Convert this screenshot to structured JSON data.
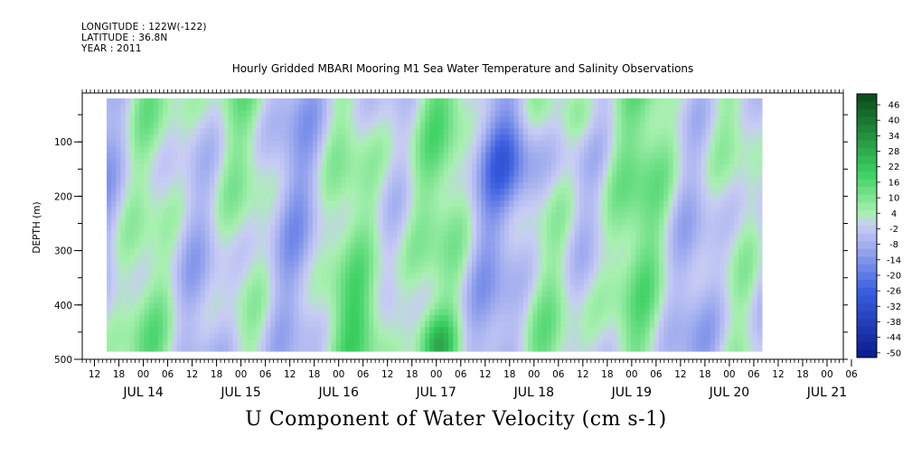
{
  "header": {
    "longitude": "LONGITUDE : 122W(-122)",
    "latitude": "LATITUDE : 36.8N",
    "year": "YEAR : 2011"
  },
  "chart_data": {
    "type": "heatmap",
    "title": "Hourly Gridded MBARI Mooring M1 Sea Water Temperature and Salinity Observations",
    "xlabel": "U Component of Water Velocity (cm s-1)",
    "ylabel": "DEPTH (m)",
    "x_hour_ticks": [
      "12",
      "18",
      "00",
      "06",
      "12",
      "18",
      "00",
      "06",
      "12",
      "18",
      "00",
      "06",
      "12",
      "18",
      "00",
      "06",
      "12",
      "18",
      "00",
      "06",
      "12",
      "18",
      "00",
      "06",
      "12",
      "18",
      "00",
      "06",
      "12",
      "18",
      "00",
      "06"
    ],
    "x_day_labels": [
      "JUL 14",
      "JUL 15",
      "JUL 16",
      "JUL 17",
      "JUL 18",
      "JUL 19",
      "JUL 20",
      "JUL 21"
    ],
    "xlim_hours_from_jul14_00": [
      -15,
      172
    ],
    "data_extent_hours_from_jul14_00": [
      -9,
      152
    ],
    "y_ticks": [
      100,
      200,
      300,
      400,
      500
    ],
    "ylim": [
      500,
      10
    ],
    "data_depth_range": [
      20,
      485
    ],
    "colorbar": {
      "levels": [
        "46",
        "40",
        "34",
        "28",
        "22",
        "16",
        "10",
        "4",
        "-2",
        "-8",
        "-14",
        "-20",
        "-26",
        "-32",
        "-38",
        "-44",
        "-50"
      ],
      "range": [
        -50,
        50
      ],
      "colors": {
        "negative_strong": "#0a1a8c",
        "negative_mid": "#3a5ee0",
        "negative_weak": "#aab4f0",
        "near_zero": "#c8ccf4",
        "positive_weak": "#a8f0b0",
        "positive_mid": "#3ad060",
        "positive_strong": "#0a4a1a"
      }
    },
    "pattern": "vertical bands alternating between weak negative (blue) and weak positive (green) U velocity, with stronger green near bottom around JUL 17 18 to JUL 18 00 and stronger blue near surface around JUL 18 18"
  }
}
